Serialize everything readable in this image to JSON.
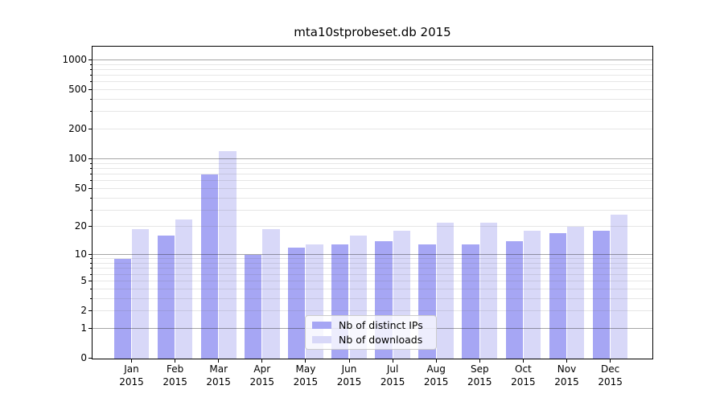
{
  "title": "mta10stprobeset.db 2015",
  "chart_data": {
    "type": "bar",
    "title": "mta10stprobeset.db 2015",
    "categories": [
      "Jan",
      "Feb",
      "Mar",
      "Apr",
      "May",
      "Jun",
      "Jul",
      "Aug",
      "Sep",
      "Oct",
      "Nov",
      "Dec"
    ],
    "x_tick_year": "2015",
    "series": [
      {
        "name": "Nb of distinct IPs",
        "color": "#a6a6f4",
        "values": [
          9,
          16,
          70,
          10,
          12,
          13,
          14,
          13,
          13,
          14,
          17,
          18
        ]
      },
      {
        "name": "Nb of downloads",
        "color": "#d8d8f8",
        "values": [
          19,
          24,
          120,
          19,
          13,
          16,
          18,
          22,
          22,
          18,
          20,
          27
        ]
      }
    ],
    "xlabel": "",
    "ylabel": "",
    "y_axis": {
      "scale": "log1p",
      "ticks": [
        0,
        1,
        2,
        5,
        10,
        20,
        50,
        100,
        200,
        500,
        1000
      ],
      "minor_ticks": [
        3,
        4,
        6,
        7,
        8,
        9,
        30,
        40,
        60,
        70,
        80,
        90,
        300,
        400,
        600,
        700,
        800,
        900
      ],
      "major_grid_values": [
        1,
        10,
        100,
        1000
      ],
      "range": [
        0,
        1356
      ]
    },
    "grid": true,
    "legend_position": "lower center"
  }
}
